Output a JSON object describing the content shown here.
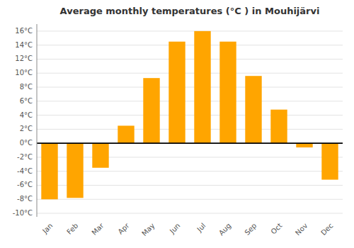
{
  "chart_data": {
    "type": "bar",
    "title": "Average monthly temperatures (°C ) in Mouhijärvi",
    "categories": [
      "Jan",
      "Feb",
      "Mar",
      "Apr",
      "May",
      "Jun",
      "Jul",
      "Aug",
      "Sep",
      "Oct",
      "Nov",
      "Dec"
    ],
    "values": [
      -8.0,
      -7.8,
      -3.5,
      2.5,
      9.3,
      14.5,
      16.0,
      14.5,
      9.6,
      4.8,
      -0.6,
      -5.2
    ],
    "color": "#FFA500",
    "ylim": [
      -10.5,
      17.0
    ],
    "yticks": [
      {
        "value": -10,
        "label": "-10°C"
      },
      {
        "value": -8,
        "label": "-8°C"
      },
      {
        "value": -6,
        "label": "-6°C"
      },
      {
        "value": -4,
        "label": "-4°C"
      },
      {
        "value": -2,
        "label": "-2°C"
      },
      {
        "value": 0,
        "label": "0°C"
      },
      {
        "value": 2,
        "label": "2°C"
      },
      {
        "value": 4,
        "label": "4°C"
      },
      {
        "value": 6,
        "label": "6°C"
      },
      {
        "value": 8,
        "label": "8°C"
      },
      {
        "value": 10,
        "label": "10°C"
      },
      {
        "value": 12,
        "label": "12°C"
      },
      {
        "value": 14,
        "label": "14°C"
      },
      {
        "value": 16,
        "label": "16°C"
      }
    ],
    "grid": true
  }
}
